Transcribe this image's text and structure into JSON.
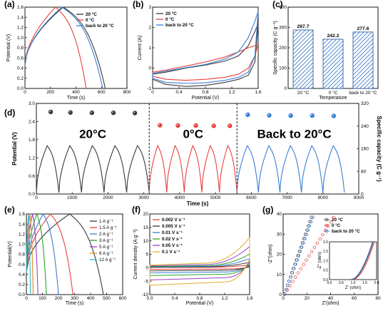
{
  "colors": {
    "c1": "#3a3a3a",
    "c2": "#e8413e",
    "c3": "#3a7fd5"
  },
  "chart_data": [
    {
      "panel": "(a)",
      "type": "line",
      "xlabel": "Time (s)",
      "ylabel": "Potential (V)",
      "xlim": [
        0,
        800
      ],
      "ylim": [
        0,
        1.6
      ],
      "xticks": [
        0,
        200,
        400,
        600,
        800
      ],
      "yticks": [
        0,
        0.2,
        0.4,
        0.6,
        0.8,
        1.0,
        1.2,
        1.4,
        1.6
      ],
      "legend": "top-right",
      "series": [
        {
          "name": "20 °C",
          "peak_time": 300,
          "end_time": 630
        },
        {
          "name": "0 °C",
          "peak_time": 240,
          "end_time": 480
        },
        {
          "name": "back to 20 °C",
          "peak_time": 290,
          "end_time": 610
        }
      ]
    },
    {
      "panel": "(b)",
      "type": "line",
      "xlabel": "Potential (V)",
      "ylabel": "Current (A)",
      "xlim": [
        0,
        1.6
      ],
      "ylim": [
        -1,
        3
      ],
      "xticks": [
        0,
        0.4,
        0.8,
        1.2,
        1.6
      ],
      "yticks": [
        -1,
        0,
        1,
        2,
        3
      ],
      "legend": "top-left",
      "series": [
        {
          "name": "20 °C",
          "upper": [
            [
              0,
              -0.3
            ],
            [
              0.2,
              -0.2
            ],
            [
              0.5,
              0.0
            ],
            [
              0.8,
              0.15
            ],
            [
              1.1,
              0.35
            ],
            [
              1.3,
              0.6
            ],
            [
              1.45,
              1.1
            ],
            [
              1.55,
              1.8
            ],
            [
              1.6,
              2.2
            ]
          ],
          "lower": [
            [
              0,
              -0.55
            ],
            [
              0.2,
              -0.8
            ],
            [
              0.5,
              -0.9
            ],
            [
              0.8,
              -0.85
            ],
            [
              1.1,
              -0.7
            ],
            [
              1.3,
              -0.55
            ],
            [
              1.45,
              -0.35
            ],
            [
              1.55,
              0.3
            ],
            [
              1.6,
              2.2
            ]
          ]
        },
        {
          "name": "0 °C",
          "upper": [
            [
              0,
              -0.2
            ],
            [
              0.2,
              -0.1
            ],
            [
              0.5,
              0.1
            ],
            [
              0.8,
              0.3
            ],
            [
              1.1,
              0.55
            ],
            [
              1.3,
              0.8
            ],
            [
              1.45,
              1.0
            ],
            [
              1.55,
              1.1
            ],
            [
              1.6,
              1.2
            ]
          ],
          "lower": [
            [
              0,
              -0.4
            ],
            [
              0.2,
              -0.55
            ],
            [
              0.5,
              -0.6
            ],
            [
              0.8,
              -0.55
            ],
            [
              1.1,
              -0.45
            ],
            [
              1.3,
              -0.3
            ],
            [
              1.45,
              0.0
            ],
            [
              1.55,
              0.6
            ],
            [
              1.6,
              1.2
            ]
          ]
        },
        {
          "name": "back to 20 °C",
          "upper": [
            [
              0,
              -0.25
            ],
            [
              0.2,
              -0.15
            ],
            [
              0.5,
              0.02
            ],
            [
              0.8,
              0.18
            ],
            [
              1.1,
              0.45
            ],
            [
              1.3,
              0.8
            ],
            [
              1.45,
              1.5
            ],
            [
              1.55,
              2.3
            ],
            [
              1.6,
              2.8
            ]
          ],
          "lower": [
            [
              0,
              -0.5
            ],
            [
              0.2,
              -0.7
            ],
            [
              0.5,
              -0.75
            ],
            [
              0.8,
              -0.72
            ],
            [
              1.1,
              -0.6
            ],
            [
              1.3,
              -0.45
            ],
            [
              1.45,
              -0.2
            ],
            [
              1.55,
              0.6
            ],
            [
              1.6,
              2.8
            ]
          ]
        }
      ]
    },
    {
      "panel": "(c)",
      "type": "bar",
      "xlabel": "Temperature",
      "ylabel": "Specific capacity (C g⁻¹)",
      "ylim": [
        0,
        400
      ],
      "yticks": [
        0,
        100,
        200,
        300,
        400
      ],
      "categories": [
        "20 °C",
        "0 °C",
        "back to 20 °C"
      ],
      "values": [
        287.7,
        242.2,
        277.6
      ],
      "value_labels": [
        "287.7",
        "242.2",
        "277.6"
      ]
    },
    {
      "panel": "(d)",
      "type": "line",
      "xlabel": "Time (s)",
      "ylabel": "Potential (V)",
      "ylabel_right": "Specific capacity (C g⁻¹)",
      "xlim": [
        0,
        9000
      ],
      "ylim": [
        0,
        3.0
      ],
      "ylim_right": [
        0,
        320
      ],
      "xticks": [
        0,
        1000,
        2000,
        3000,
        4000,
        5000,
        6000,
        7000,
        8000,
        9000
      ],
      "yticks": [
        0,
        0.6,
        1.2,
        1.8,
        2.4,
        3.0
      ],
      "yticks_right": [
        0,
        80,
        160,
        240,
        320
      ],
      "segments": [
        {
          "label": "20°C",
          "t_start": 0,
          "t_end": 3150,
          "cycles": 5
        },
        {
          "label": "0°C",
          "t_start": 3150,
          "t_end": 5600,
          "cycles": 5
        },
        {
          "label": "Back to 20°C",
          "t_start": 5600,
          "t_end": 8600,
          "cycles": 5
        }
      ],
      "dividers": [
        3150,
        5600
      ],
      "capacity_points": [
        {
          "t": 400,
          "c": 290
        },
        {
          "t": 950,
          "c": 288
        },
        {
          "t": 1550,
          "c": 287
        },
        {
          "t": 2150,
          "c": 287
        },
        {
          "t": 2750,
          "c": 286
        },
        {
          "t": 3450,
          "c": 243
        },
        {
          "t": 3950,
          "c": 242
        },
        {
          "t": 4450,
          "c": 242
        },
        {
          "t": 4950,
          "c": 241
        },
        {
          "t": 5400,
          "c": 241
        },
        {
          "t": 5900,
          "c": 280
        },
        {
          "t": 6500,
          "c": 278
        },
        {
          "t": 7100,
          "c": 277
        },
        {
          "t": 7700,
          "c": 277
        },
        {
          "t": 8300,
          "c": 276
        }
      ]
    },
    {
      "panel": "(e)",
      "type": "line",
      "xlabel": "Time (s)",
      "ylabel": "Potential(V)",
      "xlim": [
        0,
        600
      ],
      "ylim": [
        0,
        1.6
      ],
      "xticks": [
        0,
        100,
        200,
        300,
        400,
        500,
        600
      ],
      "yticks": [
        0,
        0.2,
        0.4,
        0.6,
        0.8,
        1.0,
        1.2,
        1.4,
        1.6
      ],
      "legend": "right",
      "series": [
        {
          "name": "1 A g⁻¹",
          "peak": 270,
          "end": 480
        },
        {
          "name": "1.5 A g⁻¹",
          "peak": 150,
          "end": 290
        },
        {
          "name": "2 A g⁻¹",
          "peak": 105,
          "end": 200
        },
        {
          "name": "3 A g⁻¹",
          "peak": 65,
          "end": 125
        },
        {
          "name": "5 A g⁻¹",
          "peak": 38,
          "end": 72
        },
        {
          "name": "8 A g⁻¹",
          "peak": 22,
          "end": 42
        },
        {
          "name": "12 A g⁻¹",
          "peak": 13,
          "end": 25
        }
      ]
    },
    {
      "panel": "(f)",
      "type": "line",
      "xlabel": "Potential (V)",
      "ylabel": "Current density (A g⁻¹)",
      "xlim": [
        0,
        1.6
      ],
      "ylim": [
        -10,
        20
      ],
      "xticks": [
        0,
        0.4,
        0.8,
        1.2,
        1.6
      ],
      "yticks": [
        -10,
        -5,
        0,
        5,
        10,
        15,
        20
      ],
      "legend": "top-left",
      "series": [
        {
          "name": "0.002 V s⁻¹",
          "scale": 0.09
        },
        {
          "name": "0.005 V s⁻¹",
          "scale": 0.18
        },
        {
          "name": "0.01 V s⁻¹",
          "scale": 0.3
        },
        {
          "name": "0.02 V s⁻¹",
          "scale": 0.45
        },
        {
          "name": "0.05 V s⁻¹",
          "scale": 0.7
        },
        {
          "name": "0.1 V s⁻¹",
          "scale": 1.0
        }
      ]
    },
    {
      "panel": "(g)",
      "type": "scatter",
      "xlabel": "Z'(ohm)",
      "ylabel": "-Z''(ohm)",
      "xlim": [
        0,
        80
      ],
      "ylim": [
        0,
        40
      ],
      "xticks": [
        0,
        20,
        40,
        60,
        80
      ],
      "yticks": [
        0,
        10,
        20,
        30,
        40
      ],
      "legend": "top-right",
      "series": [
        {
          "name": "20 °C",
          "slope": 1.68
        },
        {
          "name": "0 °C",
          "slope": 0.92
        },
        {
          "name": "back to 20 °C",
          "slope": 1.6
        }
      ],
      "inset": {
        "xlabel": "Z' (ohm)",
        "ylabel": "-Z'' (ohm)",
        "xlim": [
          0,
          2.0
        ],
        "ylim": [
          0,
          2.0
        ],
        "xticks": [
          0.0,
          0.5,
          1.0,
          1.5,
          2.0
        ],
        "yticks": [
          0.0,
          0.5,
          1.0,
          1.5,
          2.0
        ]
      }
    }
  ],
  "panels": {
    "a": "(a)",
    "b": "(b)",
    "c": "(c)",
    "d": "(d)",
    "e": "(e)",
    "f": "(f)",
    "g": "(g)"
  }
}
